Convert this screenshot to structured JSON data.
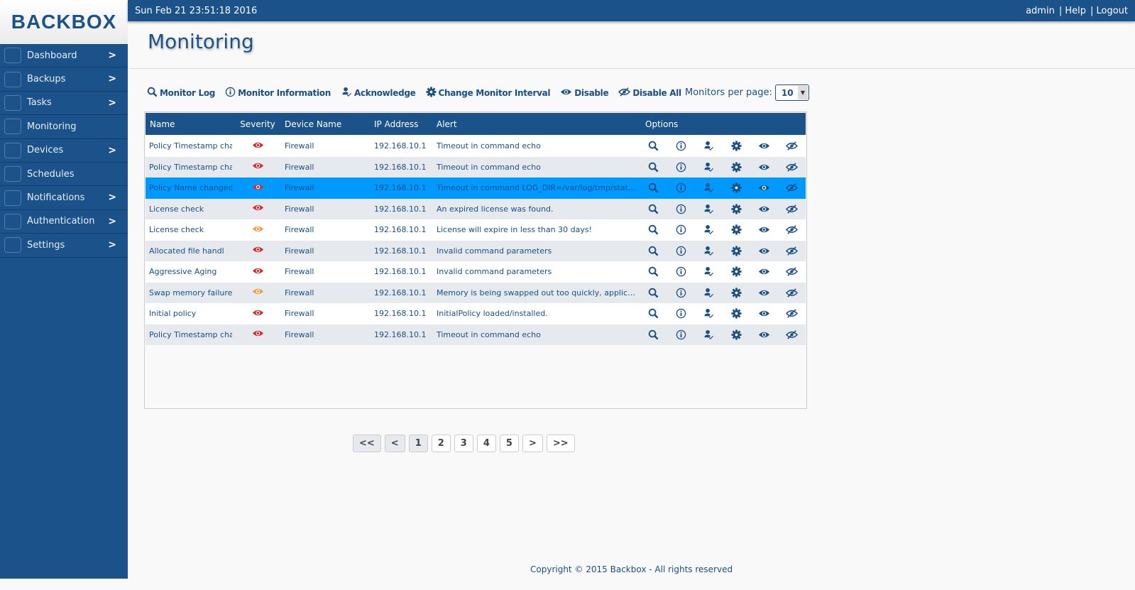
{
  "logo": "BACKBOX",
  "topbar": {
    "datetime": "Sun Feb 21 23:51:18 2016",
    "user": "admin",
    "help": "| Help",
    "logout": "| Logout"
  },
  "sidebar": {
    "items": [
      {
        "label": "Dashboard",
        "icon": "dashboard-icon",
        "chevron": true
      },
      {
        "label": "Backups",
        "icon": "backup-icon",
        "chevron": true
      },
      {
        "label": "Tasks",
        "icon": "tasks-icon",
        "chevron": true
      },
      {
        "label": "Monitoring",
        "icon": "monitor-icon",
        "chevron": false,
        "active": true
      },
      {
        "label": "Devices",
        "icon": "devices-icon",
        "chevron": true
      },
      {
        "label": "Schedules",
        "icon": "calendar-icon",
        "chevron": false
      },
      {
        "label": "Notifications",
        "icon": "notification-icon",
        "chevron": true
      },
      {
        "label": "Authentication",
        "icon": "lock-icon",
        "chevron": true
      },
      {
        "label": "Settings",
        "icon": "gear-icon",
        "chevron": true
      }
    ]
  },
  "page_title": "Monitoring",
  "toolbar": [
    {
      "label": "Monitor Log",
      "icon": "search"
    },
    {
      "label": "Monitor Information",
      "icon": "info"
    },
    {
      "label": "Acknowledge",
      "icon": "user-check"
    },
    {
      "label": "Change Monitor Interval",
      "icon": "gear"
    },
    {
      "label": "Disable",
      "icon": "eye"
    },
    {
      "label": "Disable All",
      "icon": "eye-off"
    }
  ],
  "per_page": {
    "label": "Monitors per page:",
    "value": "10"
  },
  "table": {
    "headers": [
      "Name",
      "Severity",
      "Device Name",
      "IP Address",
      "Alert",
      "Options"
    ],
    "rows": [
      {
        "name": "Policy Timestamp cha",
        "severity": "critical",
        "device": "Firewall",
        "ip": "192.168.10.1",
        "alert": "Timeout in command echo"
      },
      {
        "name": "Policy Timestamp cha",
        "severity": "critical",
        "device": "Firewall",
        "ip": "192.168.10.1",
        "alert": "Timeout in command echo"
      },
      {
        "name": "Policy Name changed",
        "severity": "critical",
        "device": "Firewall",
        "ip": "192.168.10.1",
        "alert": "Timeout in command LOG_DIR=/var/log/tmp/stat_m...",
        "selected": true
      },
      {
        "name": "License check",
        "severity": "critical",
        "device": "Firewall",
        "ip": "192.168.10.1",
        "alert": "An expired license was found."
      },
      {
        "name": "License check",
        "severity": "warning",
        "device": "Firewall",
        "ip": "192.168.10.1",
        "alert": "License will expire in less than 30 days!"
      },
      {
        "name": "Allocated file handl",
        "severity": "critical",
        "device": "Firewall",
        "ip": "192.168.10.1",
        "alert": "Invalid command parameters"
      },
      {
        "name": "Aggressive Aging",
        "severity": "critical",
        "device": "Firewall",
        "ip": "192.168.10.1",
        "alert": "Invalid command parameters"
      },
      {
        "name": "Swap memory failure",
        "severity": "warning",
        "device": "Firewall",
        "ip": "192.168.10.1",
        "alert": "Memory is being swapped out too quickly, applicatio..."
      },
      {
        "name": "Initial policy",
        "severity": "critical",
        "device": "Firewall",
        "ip": "192.168.10.1",
        "alert": "InitialPolicy loaded/installed."
      },
      {
        "name": "Policy Timestamp cha",
        "severity": "critical",
        "device": "Firewall",
        "ip": "192.168.10.1",
        "alert": "Timeout in command echo"
      }
    ]
  },
  "pager": [
    "<<",
    "<",
    "1",
    "2",
    "3",
    "4",
    "5",
    ">",
    ">>"
  ],
  "current_page": "1",
  "footer": "Copyright © 2015 Backbox - All rights reserved",
  "colors": {
    "brand": "#1a5289",
    "selected_row": "#0099ff",
    "critical": "#d62828",
    "warning": "#f39a3a"
  }
}
